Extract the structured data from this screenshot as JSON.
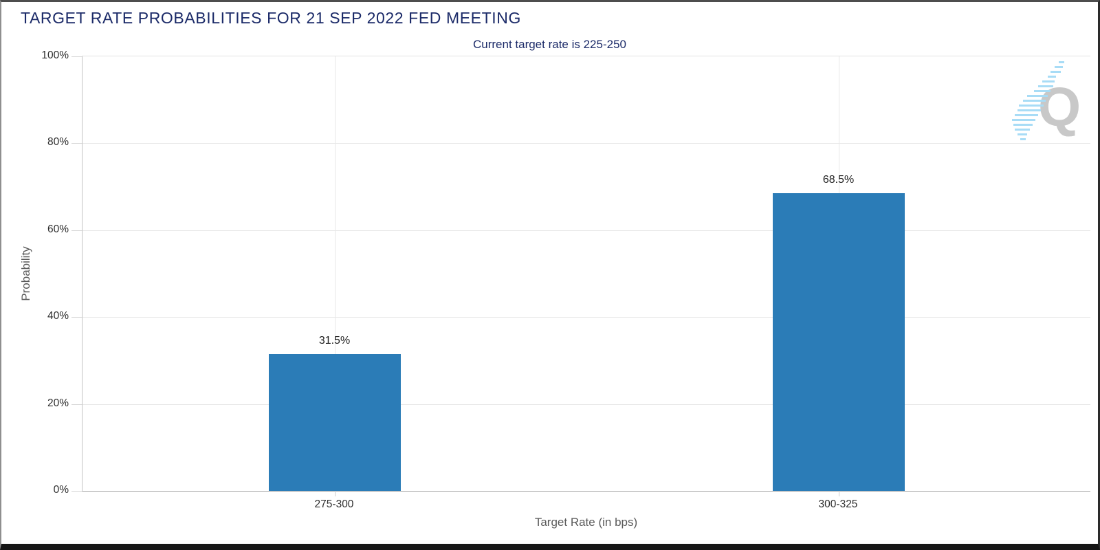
{
  "window": {
    "title": "TARGET RATE PROBABILITIES FOR 21 SEP 2022 FED MEETING"
  },
  "chart_data": {
    "type": "bar",
    "title": "TARGET RATE PROBABILITIES FOR 21 SEP 2022 FED MEETING",
    "subtitle": "Current target rate is 225-250",
    "categories": [
      "275-300",
      "300-325"
    ],
    "values": [
      31.5,
      68.5
    ],
    "value_labels": [
      "31.5%",
      "68.5%"
    ],
    "xlabel": "Target Rate (in bps)",
    "ylabel": "Probability",
    "ylim": [
      0,
      100
    ],
    "ytick_labels": [
      "100%",
      "80%",
      "60%",
      "40%",
      "20%",
      "0%"
    ],
    "grid": true,
    "legend": "none",
    "bar_color": "#2b7cb7",
    "title_color": "#1b2a68"
  },
  "watermark": {
    "letter": "Q",
    "dash_color": "#a8dcf6",
    "letter_color": "#c8c8c8"
  }
}
